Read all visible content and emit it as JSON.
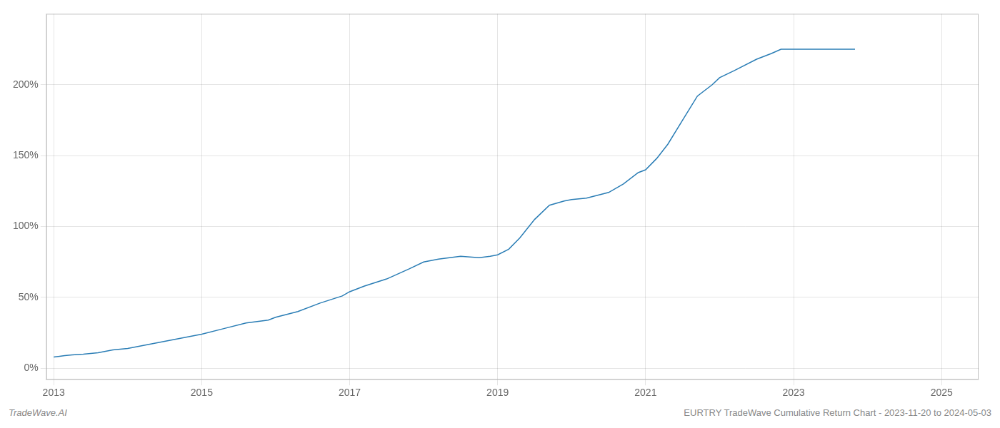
{
  "chart_data": {
    "type": "line",
    "annotations": [
      "TradeWave.AI",
      "EURTRY TradeWave Cumulative Return Chart - 2023-11-20 to 2024-05-03"
    ],
    "color": "#2a7db5",
    "grid": true,
    "xlim": [
      2012.9,
      2025.5
    ],
    "xticks": [
      2013,
      2015,
      2017,
      2019,
      2021,
      2023,
      2025
    ],
    "ylim": [
      -8,
      250
    ],
    "yticks": [
      {
        "value": 0,
        "label": "0%"
      },
      {
        "value": 50,
        "label": "50%"
      },
      {
        "value": 100,
        "label": "100%"
      },
      {
        "value": 150,
        "label": "150%"
      },
      {
        "value": 200,
        "label": "200%"
      }
    ],
    "x": [
      2013.0,
      2013.08,
      2013.15,
      2013.25,
      2013.4,
      2013.6,
      2013.8,
      2014.0,
      2014.3,
      2014.6,
      2014.8,
      2015.0,
      2015.3,
      2015.6,
      2015.9,
      2016.0,
      2016.3,
      2016.6,
      2016.9,
      2017.0,
      2017.2,
      2017.5,
      2017.8,
      2018.0,
      2018.2,
      2018.5,
      2018.75,
      2018.9,
      2019.0,
      2019.15,
      2019.3,
      2019.5,
      2019.7,
      2019.9,
      2020.0,
      2020.2,
      2020.5,
      2020.7,
      2020.9,
      2021.0,
      2021.15,
      2021.3,
      2021.5,
      2021.7,
      2021.9,
      2022.0,
      2022.2,
      2022.5,
      2022.7,
      2022.83,
      2022.9,
      2023.0,
      2023.2,
      2023.5,
      2023.83
    ],
    "values": [
      8,
      8.5,
      9,
      9.5,
      10,
      11,
      13,
      14,
      17,
      20,
      22,
      24,
      28,
      32,
      34,
      36,
      40,
      46,
      51,
      54,
      58,
      63,
      70,
      75,
      77,
      79,
      78,
      79,
      80,
      84,
      92,
      105,
      115,
      118,
      119,
      120,
      124,
      130,
      138,
      140,
      148,
      158,
      175,
      192,
      200,
      205,
      210,
      218,
      222,
      225,
      225,
      225,
      225,
      225,
      225
    ]
  }
}
